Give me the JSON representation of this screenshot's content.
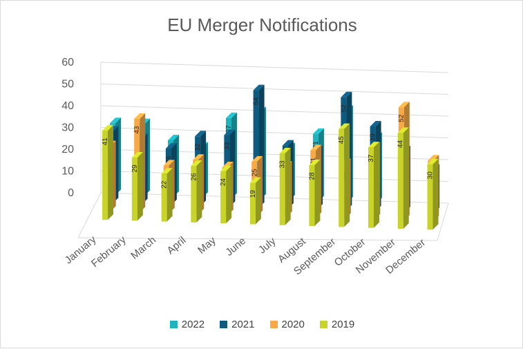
{
  "chart_data": {
    "type": "bar",
    "title": "EU Merger Notifications",
    "xlabel": "",
    "ylabel": "",
    "ylim": [
      0,
      60
    ],
    "yticks": [
      "0",
      "10",
      "20",
      "30",
      "40",
      "50",
      "60"
    ],
    "grid": true,
    "legend_position": "bottom",
    "categories": [
      "January",
      "February",
      "March",
      "April",
      "May",
      "June",
      "July",
      "August",
      "September",
      "October",
      "November",
      "December"
    ],
    "series": [
      {
        "name": "2022",
        "color": "#1fb3bd",
        "values": [
          33,
          33,
          26,
          23,
          37,
          40,
          24,
          31,
          42,
          30,
          null,
          null
        ]
      },
      {
        "name": "2021",
        "color": "#0f5b80",
        "values": [
          33,
          30,
          26,
          32,
          33,
          54,
          29,
          27,
          52,
          39,
          28,
          20
        ]
      },
      {
        "name": "2020",
        "color": "#f7a945",
        "values": [
          30,
          43,
          22,
          25,
          22,
          25,
          23,
          31,
          25,
          33,
          52,
          28
        ]
      },
      {
        "name": "2019",
        "color": "#c8d42a",
        "values": [
          41,
          29,
          22,
          26,
          24,
          19,
          33,
          28,
          45,
          37,
          44,
          30
        ]
      }
    ]
  }
}
